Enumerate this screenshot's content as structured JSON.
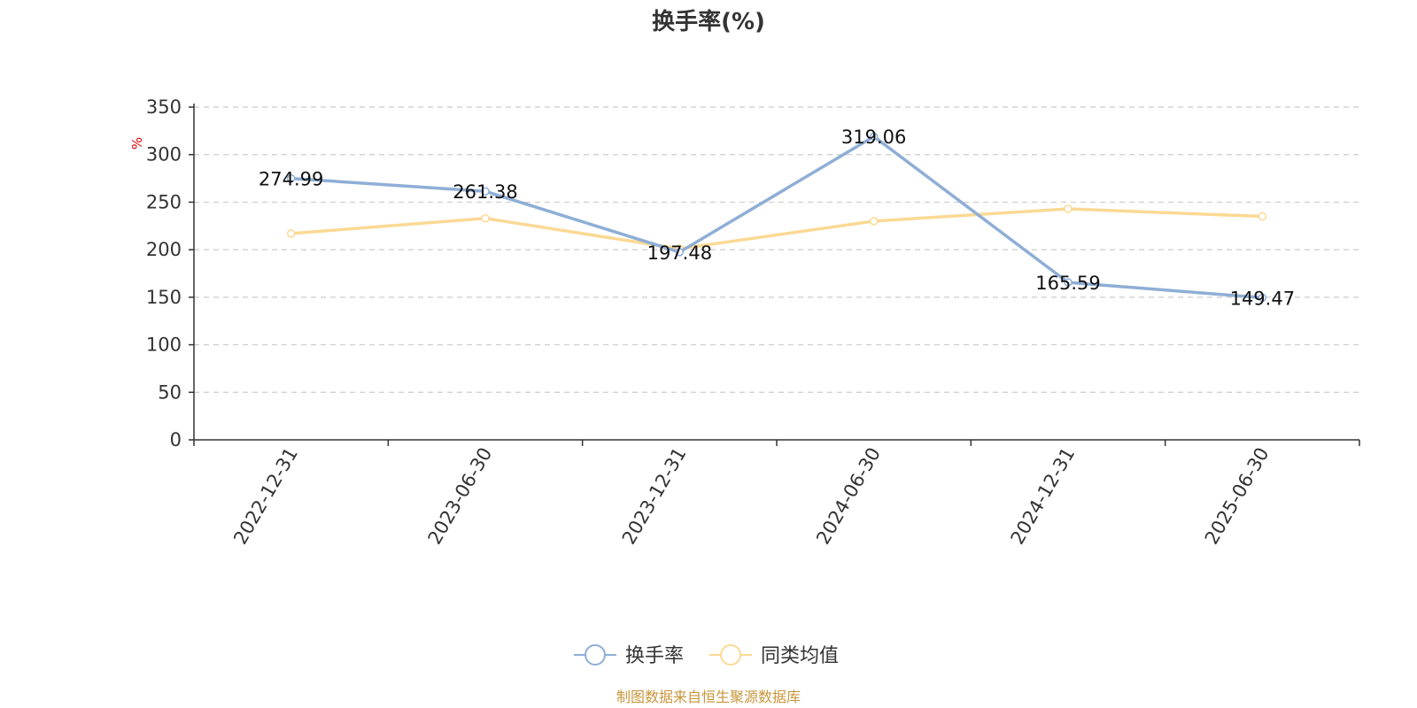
{
  "chart_data": {
    "type": "line",
    "title": "换手率(%)",
    "ylabel": "%",
    "categories": [
      "2022-12-31",
      "2023-06-30",
      "2023-12-31",
      "2024-06-30",
      "2024-12-31",
      "2025-06-30"
    ],
    "y_ticks": [
      "0",
      "50",
      "100",
      "150",
      "200",
      "250",
      "300",
      "350"
    ],
    "ylim": [
      0,
      350
    ],
    "grid": true,
    "legend_position": "bottom-center",
    "series": [
      {
        "name": "换手率",
        "color": "#8eaed6",
        "values": [
          274.99,
          261.38,
          197.48,
          319.06,
          165.59,
          149.47
        ],
        "labels": [
          "274.99",
          "261.38",
          "197.48",
          "319.06",
          "165.59",
          "149.47"
        ]
      },
      {
        "name": "同类均值",
        "color": "#fbd994",
        "values": [
          217,
          233,
          201,
          230,
          243,
          235
        ]
      }
    ]
  },
  "footer": {
    "source": "制图数据来自恒生聚源数据库"
  }
}
